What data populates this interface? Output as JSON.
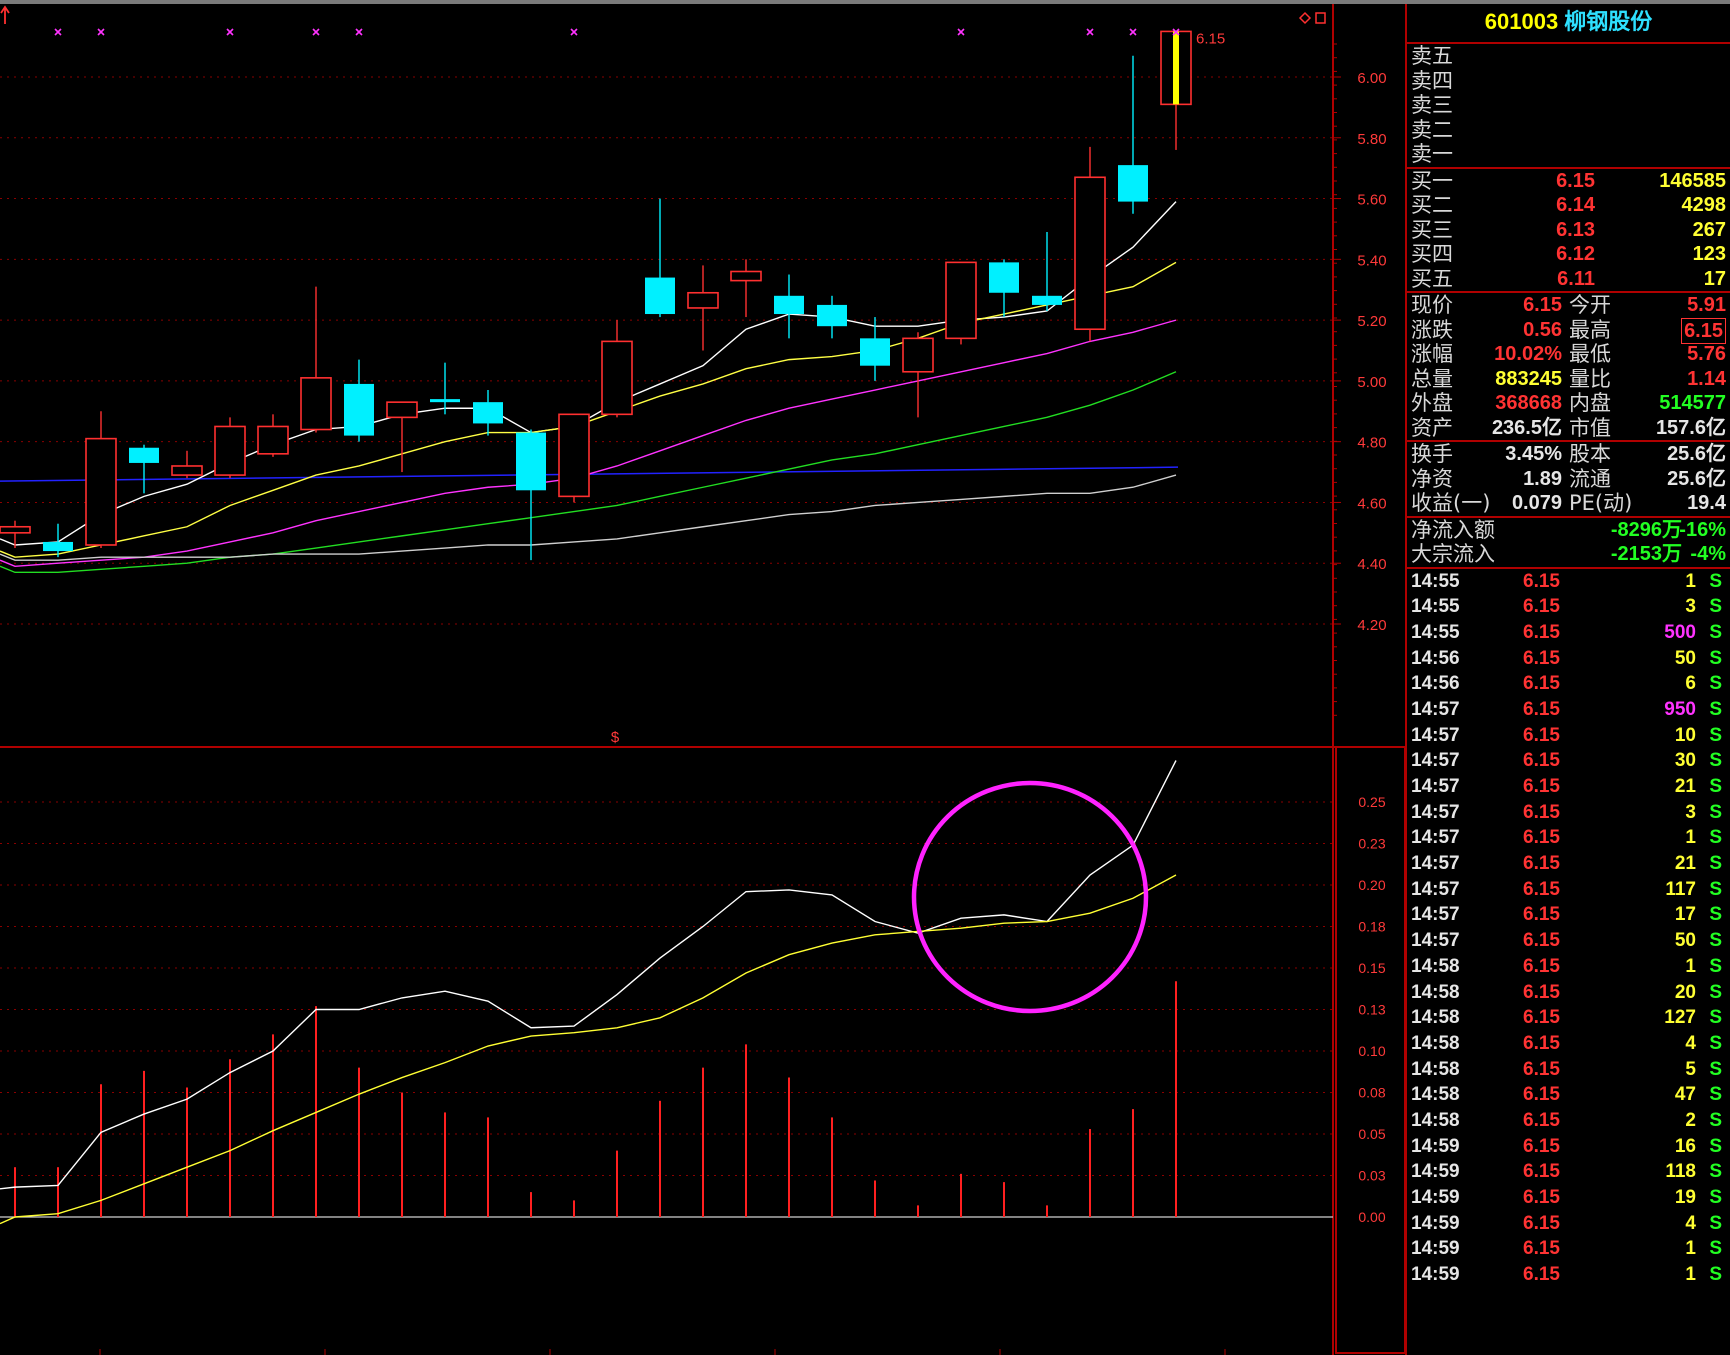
{
  "stock": {
    "code": "601003",
    "name": "柳钢股份"
  },
  "price_axis": {
    "labels": [
      "6.00",
      "5.80",
      "5.60",
      "5.40",
      "5.20",
      "5.00",
      "4.80",
      "4.60",
      "4.40",
      "4.20"
    ],
    "last_price_label": "6.15"
  },
  "indicator_axis": {
    "labels": [
      "0.25",
      "0.23",
      "0.20",
      "0.18",
      "0.15",
      "0.13",
      "0.10",
      "0.08",
      "0.05",
      "0.03",
      "0.00"
    ],
    "marker": "$"
  },
  "order_book": {
    "asks": [
      {
        "label": "卖五",
        "price": "",
        "vol": ""
      },
      {
        "label": "卖四",
        "price": "",
        "vol": ""
      },
      {
        "label": "卖三",
        "price": "",
        "vol": ""
      },
      {
        "label": "卖二",
        "price": "",
        "vol": ""
      },
      {
        "label": "卖一",
        "price": "",
        "vol": ""
      }
    ],
    "bids": [
      {
        "label": "买一",
        "price": "6.15",
        "vol": "146585"
      },
      {
        "label": "买二",
        "price": "6.14",
        "vol": "4298"
      },
      {
        "label": "买三",
        "price": "6.13",
        "vol": "267"
      },
      {
        "label": "买四",
        "price": "6.12",
        "vol": "123"
      },
      {
        "label": "买五",
        "price": "6.11",
        "vol": "17"
      }
    ]
  },
  "quote": [
    {
      "l1": "现价",
      "v1": "6.15",
      "c1": "red",
      "l2": "今开",
      "v2": "5.91",
      "c2": "red",
      "box2": false
    },
    {
      "l1": "涨跌",
      "v1": "0.56",
      "c1": "red",
      "l2": "最高",
      "v2": "6.15",
      "c2": "red",
      "box2": true
    },
    {
      "l1": "涨幅",
      "v1": "10.02%",
      "c1": "red",
      "l2": "最低",
      "v2": "5.76",
      "c2": "red",
      "box2": false
    },
    {
      "l1": "总量",
      "v1": "883245",
      "c1": "yel",
      "l2": "量比",
      "v2": "1.14",
      "c2": "red",
      "box2": false
    },
    {
      "l1": "外盘",
      "v1": "368668",
      "c1": "red",
      "l2": "内盘",
      "v2": "514577",
      "c2": "grn",
      "box2": false
    },
    {
      "l1": "资产",
      "v1": "236.5亿",
      "c1": "wht",
      "l2": "市值",
      "v2": "157.6亿",
      "c2": "wht",
      "box2": false
    }
  ],
  "fundamentals": [
    {
      "l1": "换手",
      "v1": "3.45%",
      "l2": "股本",
      "v2": "25.6亿"
    },
    {
      "l1": "净资",
      "v1": "1.89",
      "l2": "流通",
      "v2": "25.6亿"
    },
    {
      "l1": "收益(一)",
      "v1": "0.079",
      "l2": "PE(动)",
      "v2": "19.4"
    }
  ],
  "flows": [
    {
      "label": "净流入额",
      "value": "-8296万",
      "pct": "-16%"
    },
    {
      "label": "大宗流入",
      "value": "-2153万",
      "pct": "-4%"
    }
  ],
  "ticks": [
    {
      "time": "14:55",
      "price": "6.15",
      "vol": "1",
      "color": "yel",
      "dir": "S"
    },
    {
      "time": "14:55",
      "price": "6.15",
      "vol": "3",
      "color": "yel",
      "dir": "S"
    },
    {
      "time": "14:55",
      "price": "6.15",
      "vol": "500",
      "color": "mag",
      "dir": "S"
    },
    {
      "time": "14:56",
      "price": "6.15",
      "vol": "50",
      "color": "yel",
      "dir": "S"
    },
    {
      "time": "14:56",
      "price": "6.15",
      "vol": "6",
      "color": "yel",
      "dir": "S"
    },
    {
      "time": "14:57",
      "price": "6.15",
      "vol": "950",
      "color": "mag",
      "dir": "S"
    },
    {
      "time": "14:57",
      "price": "6.15",
      "vol": "10",
      "color": "yel",
      "dir": "S"
    },
    {
      "time": "14:57",
      "price": "6.15",
      "vol": "30",
      "color": "yel",
      "dir": "S"
    },
    {
      "time": "14:57",
      "price": "6.15",
      "vol": "21",
      "color": "yel",
      "dir": "S"
    },
    {
      "time": "14:57",
      "price": "6.15",
      "vol": "3",
      "color": "yel",
      "dir": "S"
    },
    {
      "time": "14:57",
      "price": "6.15",
      "vol": "1",
      "color": "yel",
      "dir": "S"
    },
    {
      "time": "14:57",
      "price": "6.15",
      "vol": "21",
      "color": "yel",
      "dir": "S"
    },
    {
      "time": "14:57",
      "price": "6.15",
      "vol": "117",
      "color": "yel",
      "dir": "S"
    },
    {
      "time": "14:57",
      "price": "6.15",
      "vol": "17",
      "color": "yel",
      "dir": "S"
    },
    {
      "time": "14:57",
      "price": "6.15",
      "vol": "50",
      "color": "yel",
      "dir": "S"
    },
    {
      "time": "14:58",
      "price": "6.15",
      "vol": "1",
      "color": "yel",
      "dir": "S"
    },
    {
      "time": "14:58",
      "price": "6.15",
      "vol": "20",
      "color": "yel",
      "dir": "S"
    },
    {
      "time": "14:58",
      "price": "6.15",
      "vol": "127",
      "color": "yel",
      "dir": "S"
    },
    {
      "time": "14:58",
      "price": "6.15",
      "vol": "4",
      "color": "yel",
      "dir": "S"
    },
    {
      "time": "14:58",
      "price": "6.15",
      "vol": "5",
      "color": "yel",
      "dir": "S"
    },
    {
      "time": "14:58",
      "price": "6.15",
      "vol": "47",
      "color": "yel",
      "dir": "S"
    },
    {
      "time": "14:58",
      "price": "6.15",
      "vol": "2",
      "color": "yel",
      "dir": "S"
    },
    {
      "time": "14:59",
      "price": "6.15",
      "vol": "16",
      "color": "yel",
      "dir": "S"
    },
    {
      "time": "14:59",
      "price": "6.15",
      "vol": "118",
      "color": "yel",
      "dir": "S"
    },
    {
      "time": "14:59",
      "price": "6.15",
      "vol": "19",
      "color": "yel",
      "dir": "S"
    },
    {
      "time": "14:59",
      "price": "6.15",
      "vol": "4",
      "color": "yel",
      "dir": "S"
    },
    {
      "time": "14:59",
      "price": "6.15",
      "vol": "1",
      "color": "yel",
      "dir": "S"
    },
    {
      "time": "14:59",
      "price": "6.15",
      "vol": "1",
      "color": "yel",
      "dir": "S"
    }
  ],
  "chart_data": {
    "type": "candlestick",
    "price_range": [
      4.1,
      6.22
    ],
    "candles": [
      {
        "o": 4.5,
        "c": 4.52,
        "h": 4.54,
        "l": 4.45
      },
      {
        "o": 4.47,
        "c": 4.44,
        "h": 4.53,
        "l": 4.42
      },
      {
        "o": 4.46,
        "c": 4.81,
        "h": 4.9,
        "l": 4.45
      },
      {
        "o": 4.78,
        "c": 4.73,
        "h": 4.79,
        "l": 4.63
      },
      {
        "o": 4.69,
        "c": 4.72,
        "h": 4.77,
        "l": 4.68
      },
      {
        "o": 4.69,
        "c": 4.85,
        "h": 4.88,
        "l": 4.68
      },
      {
        "o": 4.76,
        "c": 4.85,
        "h": 4.89,
        "l": 4.75
      },
      {
        "o": 4.84,
        "c": 5.01,
        "h": 5.31,
        "l": 4.83
      },
      {
        "o": 4.99,
        "c": 4.82,
        "h": 5.07,
        "l": 4.8
      },
      {
        "o": 4.88,
        "c": 4.93,
        "h": 4.93,
        "l": 4.7
      },
      {
        "o": 4.94,
        "c": 4.93,
        "h": 5.06,
        "l": 4.89
      },
      {
        "o": 4.93,
        "c": 4.86,
        "h": 4.97,
        "l": 4.82
      },
      {
        "o": 4.83,
        "c": 4.64,
        "h": 4.84,
        "l": 4.41
      },
      {
        "o": 4.62,
        "c": 4.89,
        "h": 4.89,
        "l": 4.6
      },
      {
        "o": 4.89,
        "c": 5.13,
        "h": 5.2,
        "l": 4.88
      },
      {
        "o": 5.34,
        "c": 5.22,
        "h": 5.6,
        "l": 5.21
      },
      {
        "o": 5.24,
        "c": 5.29,
        "h": 5.38,
        "l": 5.1
      },
      {
        "o": 5.33,
        "c": 5.36,
        "h": 5.4,
        "l": 5.21
      },
      {
        "o": 5.28,
        "c": 5.22,
        "h": 5.35,
        "l": 5.14
      },
      {
        "o": 5.25,
        "c": 5.18,
        "h": 5.28,
        "l": 5.14
      },
      {
        "o": 5.14,
        "c": 5.05,
        "h": 5.21,
        "l": 5.0
      },
      {
        "o": 5.03,
        "c": 5.14,
        "h": 5.16,
        "l": 4.88
      },
      {
        "o": 5.14,
        "c": 5.39,
        "h": 5.39,
        "l": 5.12
      },
      {
        "o": 5.39,
        "c": 5.29,
        "h": 5.4,
        "l": 5.21
      },
      {
        "o": 5.28,
        "c": 5.25,
        "h": 5.49,
        "l": 5.23
      },
      {
        "o": 5.17,
        "c": 5.67,
        "h": 5.77,
        "l": 5.13
      },
      {
        "o": 5.71,
        "c": 5.59,
        "h": 6.07,
        "l": 5.55
      },
      {
        "o": 5.91,
        "c": 6.15,
        "h": 6.15,
        "l": 5.76
      }
    ],
    "ma_lines": [
      {
        "color": "#ffffff",
        "values": [
          4.46,
          4.47,
          4.56,
          4.62,
          4.66,
          4.73,
          4.79,
          4.84,
          4.85,
          4.89,
          4.91,
          4.91,
          4.83,
          4.85,
          4.93,
          4.99,
          5.05,
          5.17,
          5.22,
          5.21,
          5.18,
          5.18,
          5.2,
          5.21,
          5.23,
          5.34,
          5.44,
          5.59
        ]
      },
      {
        "color": "#ffff44",
        "values": [
          4.42,
          4.43,
          4.46,
          4.49,
          4.52,
          4.59,
          4.64,
          4.69,
          4.72,
          4.76,
          4.8,
          4.83,
          4.83,
          4.85,
          4.9,
          4.95,
          4.99,
          5.04,
          5.07,
          5.08,
          5.1,
          5.14,
          5.19,
          5.22,
          5.25,
          5.28,
          5.31,
          5.39
        ]
      },
      {
        "color": "#ff33ff",
        "values": [
          4.39,
          4.4,
          4.41,
          4.42,
          4.44,
          4.47,
          4.5,
          4.54,
          4.57,
          4.6,
          4.63,
          4.65,
          4.66,
          4.68,
          4.72,
          4.77,
          4.82,
          4.87,
          4.91,
          4.94,
          4.97,
          5.0,
          5.03,
          5.06,
          5.09,
          5.13,
          5.16,
          5.2
        ]
      },
      {
        "color": "#22dd22",
        "values": [
          4.37,
          4.37,
          4.38,
          4.39,
          4.4,
          4.42,
          4.43,
          4.45,
          4.47,
          4.49,
          4.51,
          4.53,
          4.55,
          4.57,
          4.59,
          4.62,
          4.65,
          4.68,
          4.71,
          4.74,
          4.76,
          4.79,
          4.82,
          4.85,
          4.88,
          4.92,
          4.97,
          5.03
        ]
      },
      {
        "color": "#cfcfcf",
        "values": [
          4.41,
          4.41,
          4.42,
          4.42,
          4.42,
          4.42,
          4.43,
          4.43,
          4.43,
          4.44,
          4.45,
          4.46,
          4.46,
          4.47,
          4.48,
          4.5,
          4.52,
          4.54,
          4.56,
          4.57,
          4.59,
          4.6,
          4.61,
          4.62,
          4.63,
          4.63,
          4.65,
          4.69
        ]
      }
    ],
    "hline": {
      "value": 4.67,
      "color": "#2222ff"
    },
    "x_markers": [
      1,
      2,
      5,
      7,
      8,
      13,
      22,
      25,
      26,
      27
    ],
    "indicator": {
      "range": [
        -0.005,
        0.275
      ],
      "white": [
        0.018,
        0.019,
        0.051,
        0.062,
        0.071,
        0.087,
        0.1,
        0.125,
        0.125,
        0.132,
        0.136,
        0.13,
        0.114,
        0.115,
        0.134,
        0.156,
        0.175,
        0.196,
        0.197,
        0.194,
        0.178,
        0.171,
        0.18,
        0.182,
        0.178,
        0.206,
        0.224,
        0.275
      ],
      "yellow": [
        0.0,
        0.002,
        0.01,
        0.02,
        0.03,
        0.04,
        0.052,
        0.063,
        0.074,
        0.084,
        0.093,
        0.103,
        0.109,
        0.111,
        0.114,
        0.12,
        0.132,
        0.147,
        0.158,
        0.165,
        0.17,
        0.172,
        0.174,
        0.177,
        0.178,
        0.183,
        0.192,
        0.206
      ],
      "bars": [
        0.03,
        0.03,
        0.08,
        0.088,
        0.078,
        0.095,
        0.11,
        0.127,
        0.09,
        0.075,
        0.063,
        0.06,
        0.015,
        0.01,
        0.04,
        0.07,
        0.09,
        0.104,
        0.084,
        0.06,
        0.022,
        0.007,
        0.026,
        0.021,
        0.007,
        0.053,
        0.065,
        0.142
      ]
    }
  }
}
